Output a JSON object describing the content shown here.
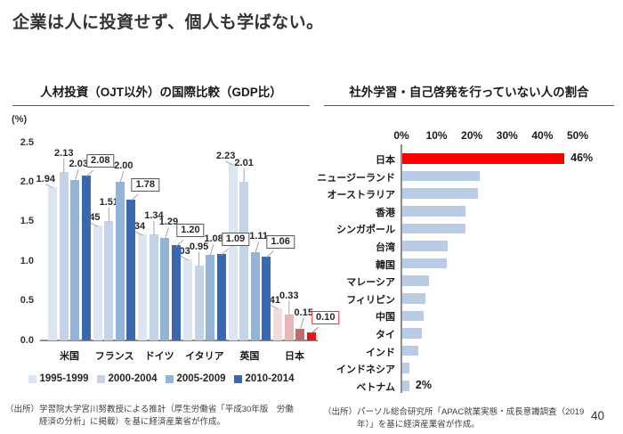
{
  "page": {
    "title": "企業は人に投資せず、個人も学ばない。",
    "page_number": "40"
  },
  "footnotes": {
    "left": {
      "prefix": "（出所）",
      "text": "学習院大学宮川努教授による推計（厚生労働省「平成30年版　労働経済の分析」に掲載）を基に経済産業省が作成。"
    },
    "right": {
      "prefix": "（出所）",
      "text": "パーソル総合研究所「APAC就業実態・成長意識調査（2019年）」を基に経済産業省が作成。"
    }
  },
  "chart_data": [
    {
      "type": "bar",
      "orientation": "vertical-grouped",
      "title": "人材投資（OJT以外）の国際比較（GDP比）",
      "unit_label": "(%)",
      "ylim": [
        0,
        2.5
      ],
      "ytick_step": 0.5,
      "grid": false,
      "legend_position": "bottom",
      "categories": [
        "米国",
        "フランス",
        "ドイツ",
        "イタリア",
        "英国",
        "日本"
      ],
      "series": [
        {
          "name": "1995-1999",
          "values": [
            1.94,
            1.45,
            1.34,
            1.03,
            2.23,
            0.41
          ]
        },
        {
          "name": "2000-2004",
          "values": [
            2.13,
            1.51,
            1.34,
            0.95,
            2.01,
            0.33
          ]
        },
        {
          "name": "2005-2009",
          "values": [
            2.03,
            2.0,
            1.29,
            1.08,
            1.11,
            0.15
          ]
        },
        {
          "name": "2010-2014",
          "values": [
            2.08,
            1.78,
            1.2,
            1.09,
            1.06,
            0.1
          ]
        }
      ],
      "series_colors": [
        "#dce6f2",
        "#c3d4e9",
        "#95b3d7",
        "#3a68ae"
      ],
      "japan_series_colors": [
        "#f2dcdb",
        "#e6b9b8",
        "#bd6e6c",
        "#ee1111"
      ],
      "boxed_series": "2010-2014",
      "box_border_color": "#595959",
      "japan_box_border_color": "#ff2626"
    },
    {
      "type": "bar",
      "orientation": "horizontal",
      "title": "社外学習・自己啓発を行っていない人の割合",
      "xlim": [
        0,
        50
      ],
      "xticks": [
        "0%",
        "10%",
        "20%",
        "30%",
        "40%",
        "50%"
      ],
      "axis_position": "top",
      "grid": false,
      "categories": [
        "日本",
        "ニュージーランド",
        "オーストラリア",
        "香港",
        "シンガポール",
        "台湾",
        "韓国",
        "マレーシア",
        "フィリピン",
        "中国",
        "タイ",
        "インド",
        "インドネシア",
        "ベトナム"
      ],
      "values": [
        46,
        22,
        21.5,
        18,
        18,
        13,
        12.5,
        7.5,
        6.5,
        6,
        5.5,
        4.5,
        2,
        2
      ],
      "value_labels": [
        "46%",
        "",
        "",
        "",
        "",
        "",
        "",
        "",
        "",
        "",
        "",
        "",
        "",
        "2%"
      ],
      "highlight_category": "日本",
      "highlight_color": "#f80000",
      "bar_color": "#b9cce3"
    }
  ]
}
